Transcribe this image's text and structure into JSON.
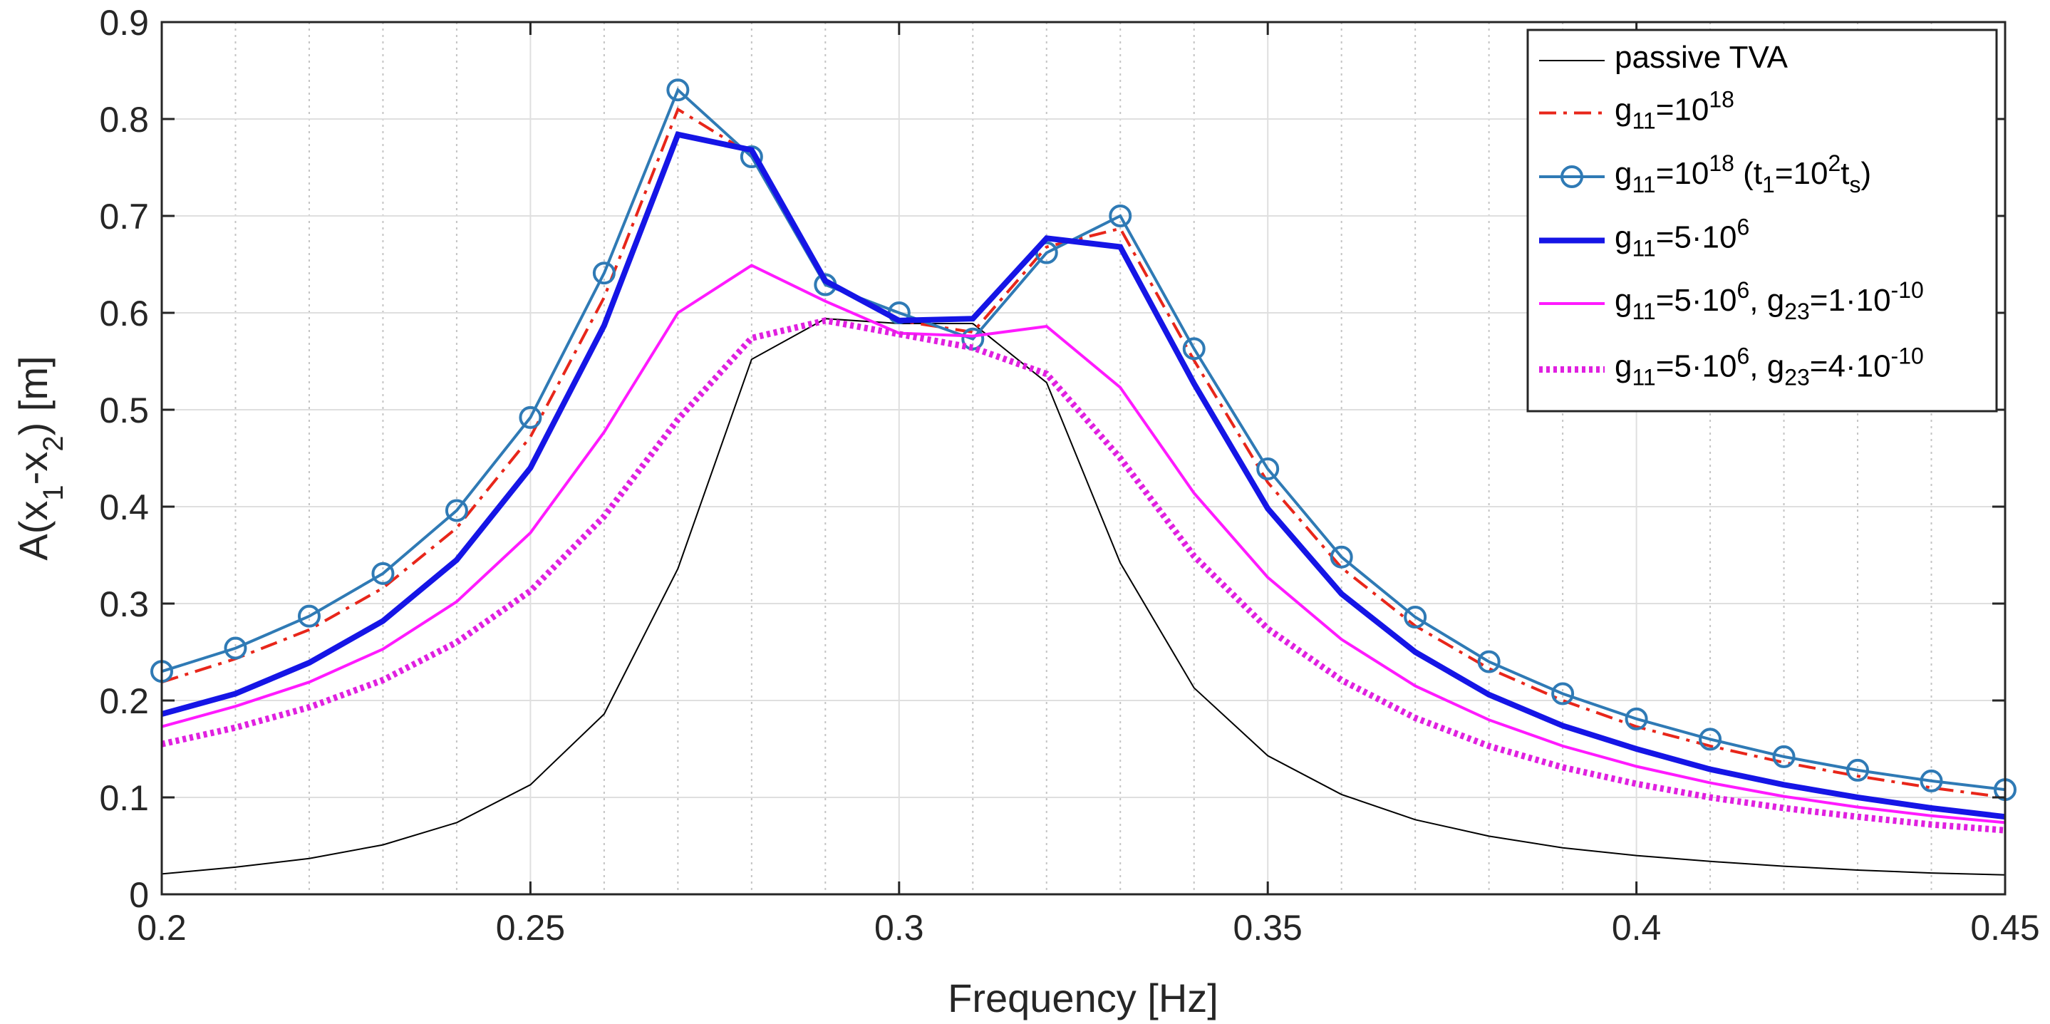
{
  "chart_data": {
    "type": "line",
    "title": "",
    "xlabel": "Frequency [Hz]",
    "ylabel": "A(x₁-x₂) [m]",
    "ylabel_parts": [
      "A(x",
      "1",
      "-x",
      "2",
      ") [m]"
    ],
    "xlim": [
      0.2,
      0.45
    ],
    "ylim": [
      0,
      0.9
    ],
    "grid": true,
    "legend_position": "top-right",
    "xticks": [
      0.2,
      0.25,
      0.3,
      0.35,
      0.4,
      0.45
    ],
    "xtick_labels": [
      "0.2",
      "0.25",
      "0.3",
      "0.35",
      "0.4",
      "0.45"
    ],
    "yticks": [
      0,
      0.1,
      0.2,
      0.3,
      0.4,
      0.5,
      0.6,
      0.7,
      0.8,
      0.9
    ],
    "ytick_labels": [
      "0",
      "0.1",
      "0.2",
      "0.3",
      "0.4",
      "0.5",
      "0.6",
      "0.7",
      "0.8",
      "0.9"
    ],
    "x": [
      0.2,
      0.21,
      0.22,
      0.23,
      0.24,
      0.25,
      0.26,
      0.27,
      0.28,
      0.29,
      0.3,
      0.31,
      0.32,
      0.33,
      0.34,
      0.35,
      0.36,
      0.37,
      0.38,
      0.39,
      0.4,
      0.41,
      0.42,
      0.43,
      0.44,
      0.45
    ],
    "series": [
      {
        "name": "passive TVA",
        "legend_parts": [
          "passive TVA"
        ],
        "color": "#000000",
        "style": "solid",
        "width": 2,
        "values": [
          0.021,
          0.028,
          0.037,
          0.051,
          0.074,
          0.113,
          0.186,
          0.336,
          0.552,
          0.594,
          0.589,
          0.589,
          0.528,
          0.342,
          0.213,
          0.143,
          0.103,
          0.077,
          0.06,
          0.048,
          0.04,
          0.034,
          0.029,
          0.025,
          0.022,
          0.02
        ]
      },
      {
        "name": "g11=10^18",
        "legend_parts": [
          "g",
          "11",
          "=10",
          "18"
        ],
        "color": "#e8261a",
        "style": "dashdot",
        "width": 4,
        "values": [
          0.219,
          0.243,
          0.273,
          0.316,
          0.378,
          0.472,
          0.616,
          0.81,
          0.763,
          0.632,
          0.592,
          0.58,
          0.668,
          0.687,
          0.551,
          0.425,
          0.337,
          0.277,
          0.233,
          0.2,
          0.173,
          0.153,
          0.136,
          0.122,
          0.11,
          0.1
        ]
      },
      {
        "name": "g11=10^18 (t1=10^2 ts)",
        "legend_parts": [
          "g",
          "11",
          "=10",
          "18",
          " (t",
          "1",
          "=10",
          "2",
          "t",
          "s",
          ")"
        ],
        "color": "#2f7ab5",
        "style": "solid",
        "width": 4,
        "marker": "circle",
        "values": [
          0.23,
          0.254,
          0.287,
          0.331,
          0.396,
          0.492,
          0.641,
          0.83,
          0.761,
          0.629,
          0.6,
          0.573,
          0.662,
          0.7,
          0.563,
          0.439,
          0.348,
          0.286,
          0.24,
          0.207,
          0.181,
          0.16,
          0.142,
          0.128,
          0.117,
          0.108
        ]
      },
      {
        "name": "g11=5·10^6",
        "legend_parts": [
          "g",
          "11",
          "=5·10",
          "6"
        ],
        "color": "#1515e6",
        "style": "solid",
        "width": 8,
        "values": [
          0.186,
          0.207,
          0.239,
          0.282,
          0.345,
          0.44,
          0.587,
          0.784,
          0.768,
          0.633,
          0.592,
          0.594,
          0.677,
          0.668,
          0.527,
          0.398,
          0.31,
          0.25,
          0.206,
          0.174,
          0.15,
          0.129,
          0.113,
          0.1,
          0.089,
          0.08
        ]
      },
      {
        "name": "g11=5·10^6, g23=1·10^-10",
        "legend_parts": [
          "g",
          "11",
          "=5·10",
          "6",
          ", g",
          "23",
          "=1·10",
          "-10"
        ],
        "color": "#ff1aff",
        "style": "solid",
        "width": 4,
        "values": [
          0.173,
          0.194,
          0.219,
          0.253,
          0.302,
          0.373,
          0.477,
          0.6,
          0.649,
          0.612,
          0.579,
          0.576,
          0.586,
          0.523,
          0.414,
          0.327,
          0.263,
          0.215,
          0.18,
          0.153,
          0.132,
          0.115,
          0.101,
          0.09,
          0.081,
          0.074
        ]
      },
      {
        "name": "g11=5·10^6, g23=4·10^-10",
        "legend_parts": [
          "g",
          "11",
          "=5·10",
          "6",
          ", g",
          "23",
          "=4·10",
          "-10"
        ],
        "color": "#e020e0",
        "style": "dotted",
        "width": 9,
        "values": [
          0.155,
          0.172,
          0.193,
          0.221,
          0.26,
          0.313,
          0.39,
          0.49,
          0.574,
          0.592,
          0.578,
          0.564,
          0.537,
          0.45,
          0.349,
          0.274,
          0.221,
          0.182,
          0.153,
          0.131,
          0.114,
          0.1,
          0.089,
          0.08,
          0.072,
          0.066
        ]
      }
    ]
  }
}
